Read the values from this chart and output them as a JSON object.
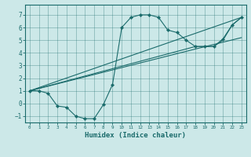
{
  "xlabel": "Humidex (Indice chaleur)",
  "xlim": [
    -0.5,
    23.5
  ],
  "ylim": [
    -1.5,
    7.8
  ],
  "xticks": [
    0,
    1,
    2,
    3,
    4,
    5,
    6,
    7,
    8,
    9,
    10,
    11,
    12,
    13,
    14,
    15,
    16,
    17,
    18,
    19,
    20,
    21,
    22,
    23
  ],
  "yticks": [
    -1,
    0,
    1,
    2,
    3,
    4,
    5,
    6,
    7
  ],
  "bg_color": "#cce8e8",
  "line_color": "#1a6b6b",
  "line1_x": [
    0,
    1,
    2,
    3,
    4,
    5,
    6,
    7,
    8,
    9,
    10,
    11,
    12,
    13,
    14,
    15,
    16,
    17,
    18,
    19,
    20,
    21,
    22,
    23
  ],
  "line1_y": [
    1.0,
    1.0,
    0.8,
    -0.2,
    -0.3,
    -1.0,
    -1.2,
    -1.2,
    -0.1,
    1.5,
    6.0,
    6.8,
    7.0,
    7.0,
    6.8,
    5.8,
    5.6,
    5.0,
    4.5,
    4.5,
    4.5,
    5.1,
    6.2,
    6.8
  ],
  "line2_x": [
    0,
    23
  ],
  "line2_y": [
    1.0,
    6.8
  ],
  "line3_x": [
    0,
    18,
    19,
    20,
    21,
    22,
    23
  ],
  "line3_y": [
    1.0,
    4.5,
    4.5,
    4.5,
    5.0,
    6.2,
    6.8
  ],
  "line4_x": [
    0,
    18,
    23
  ],
  "line4_y": [
    1.0,
    4.3,
    5.2
  ]
}
